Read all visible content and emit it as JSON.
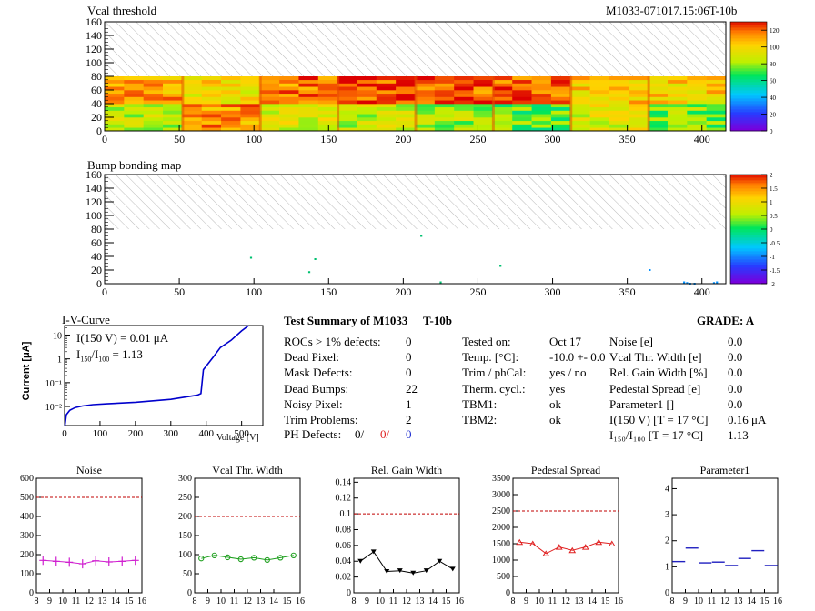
{
  "header": {
    "map1_title": "Vcal threshold",
    "module_id": "M1033-071017.15:06T-10b",
    "map2_title": "Bump bonding map"
  },
  "map_common": {
    "x_ticks": [
      0,
      50,
      100,
      150,
      200,
      250,
      300,
      350,
      400
    ],
    "y_ticks": [
      0,
      20,
      40,
      60,
      80,
      100,
      120,
      140,
      160
    ],
    "xlim": [
      0,
      416
    ],
    "ylim": [
      0,
      160
    ],
    "filled_rows_max": 80
  },
  "vcal_map": {
    "palette_ticks": [
      "0",
      "20",
      "40",
      "60",
      "80",
      "100",
      "120"
    ],
    "zlim": [
      0,
      130
    ],
    "roc_base_levels": [
      82,
      112,
      88,
      84,
      80,
      72,
      90,
      76,
      110,
      96,
      116,
      122,
      120,
      120,
      102,
      100
    ]
  },
  "bump_map": {
    "palette_ticks": [
      "-2",
      "-1.5",
      "-1",
      "-0.5",
      "0",
      "0.5",
      "1",
      "1.5",
      "2"
    ],
    "zlim": [
      -2,
      2
    ],
    "dead_bumps": [
      [
        98,
        38
      ],
      [
        137,
        17
      ],
      [
        141,
        36
      ],
      [
        212,
        70
      ],
      [
        225,
        2
      ],
      [
        265,
        26
      ],
      [
        365,
        20
      ],
      [
        388,
        2
      ],
      [
        390,
        1
      ],
      [
        392,
        0
      ],
      [
        395,
        0
      ],
      [
        408,
        1
      ],
      [
        410,
        2
      ]
    ]
  },
  "iv": {
    "title": "I-V-Curve",
    "ylabel": "Current [μA]",
    "xlabel": "Voltage [V]",
    "ann1": "I(150 V) = 0.01 μA",
    "ann2_pre": "I",
    "ann2_sub1": "150",
    "ann2_mid": "/I",
    "ann2_sub2": "100",
    "ann2_post": " =  1.13",
    "x_ticks": [
      "0",
      "100",
      "200",
      "300",
      "400",
      "500"
    ],
    "y_ticks": [
      "10⁻²",
      "10⁻¹",
      "1",
      "10"
    ],
    "xlim": [
      0,
      560
    ],
    "ylog_range": [
      -2.8,
      1.4
    ],
    "points": [
      [
        1,
        0.0016
      ],
      [
        5,
        0.0045
      ],
      [
        15,
        0.007
      ],
      [
        30,
        0.009
      ],
      [
        50,
        0.0105
      ],
      [
        80,
        0.012
      ],
      [
        120,
        0.013
      ],
      [
        200,
        0.015
      ],
      [
        300,
        0.02
      ],
      [
        375,
        0.03
      ],
      [
        385,
        0.035
      ],
      [
        392,
        0.35
      ],
      [
        400,
        0.5
      ],
      [
        420,
        1.2
      ],
      [
        440,
        3.0
      ],
      [
        470,
        6.0
      ],
      [
        500,
        15.0
      ],
      [
        520,
        30.0
      ]
    ]
  },
  "summary": {
    "title": "Test Summary of M1033",
    "tbin": "T-10b",
    "grade": "GRADE:  A",
    "col1": [
      {
        "label": "ROCs > 1% defects:",
        "value": "0"
      },
      {
        "label": "Dead Pixel:",
        "value": "0"
      },
      {
        "label": "Mask Defects:",
        "value": "0"
      },
      {
        "label": "Dead Bumps:",
        "value": "22"
      },
      {
        "label": "Noisy Pixel:",
        "value": "1"
      },
      {
        "label": "Trim Problems:",
        "value": "2"
      }
    ],
    "ph_label": "PH Defects:",
    "ph_values": [
      "0/",
      "0/",
      "0"
    ],
    "col2": [
      {
        "label": "Tested on:",
        "value": "Oct 17"
      },
      {
        "label": "Temp. [°C]:",
        "value": "-10.0 +- 0.0"
      },
      {
        "label": "Trim / phCal:",
        "value": "yes / no"
      },
      {
        "label": "Therm. cycl.:",
        "value": "yes"
      },
      {
        "label": "TBM1:",
        "value": "ok"
      },
      {
        "label": "TBM2:",
        "value": "ok"
      }
    ],
    "col3": [
      {
        "label": "Noise [e]",
        "value": "0.0"
      },
      {
        "label": "Vcal Thr. Width [e]",
        "value": "0.0"
      },
      {
        "label": "Rel. Gain Width [%]",
        "value": "0.0"
      },
      {
        "label": "Pedestal Spread [e]",
        "value": "0.0"
      },
      {
        "label": "Parameter1 []",
        "value": "0.0"
      },
      {
        "label": "I(150 V) [T = 17 °C]",
        "value": "0.16 μA"
      },
      {
        "label": "I₁₅₀/I₁₀₀  [T = 17 °C]",
        "value": "1.13"
      }
    ]
  },
  "chart_data": [
    {
      "type": "line",
      "title": "Noise",
      "x": [
        8.5,
        9.5,
        10.5,
        11.5,
        12.5,
        13.5,
        14.5,
        15.5
      ],
      "values": [
        170,
        165,
        160,
        152,
        168,
        162,
        165,
        170
      ],
      "ylim": [
        0,
        600
      ],
      "y_ticks": [
        0,
        100,
        200,
        300,
        400,
        500,
        600
      ],
      "x_ticks": [
        8,
        9,
        10,
        11,
        12,
        13,
        14,
        15,
        16
      ],
      "xlim": [
        8,
        16
      ],
      "threshold": 500,
      "color": "#d020d0",
      "marker": "plus"
    },
    {
      "type": "line",
      "title": "Vcal Thr. Width",
      "x": [
        8.5,
        9.5,
        10.5,
        11.5,
        12.5,
        13.5,
        14.5,
        15.5
      ],
      "values": [
        90,
        98,
        93,
        88,
        92,
        86,
        92,
        98
      ],
      "ylim": [
        0,
        300
      ],
      "y_ticks": [
        0,
        50,
        100,
        150,
        200,
        250,
        300
      ],
      "x_ticks": [
        8,
        9,
        10,
        11,
        12,
        13,
        14,
        15,
        16
      ],
      "xlim": [
        8,
        16
      ],
      "threshold": 200,
      "color": "#20a020",
      "marker": "circle"
    },
    {
      "type": "line",
      "title": "Rel. Gain Width",
      "x": [
        8.5,
        9.5,
        10.5,
        11.5,
        12.5,
        13.5,
        14.5,
        15.5
      ],
      "values": [
        0.04,
        0.052,
        0.027,
        0.028,
        0.025,
        0.028,
        0.04,
        0.03
      ],
      "ylim": [
        0,
        0.145
      ],
      "y_ticks": [
        0,
        0.02,
        0.04,
        0.06,
        0.08,
        0.1,
        0.12,
        0.14
      ],
      "x_ticks": [
        8,
        9,
        10,
        11,
        12,
        13,
        14,
        15,
        16
      ],
      "xlim": [
        8,
        16
      ],
      "threshold": 0.1,
      "color": "#000000",
      "marker": "triangle-down"
    },
    {
      "type": "line",
      "title": "Pedestal Spread",
      "x": [
        8.5,
        9.5,
        10.5,
        11.5,
        12.5,
        13.5,
        14.5,
        15.5
      ],
      "values": [
        1550,
        1500,
        1200,
        1400,
        1300,
        1400,
        1550,
        1500
      ],
      "ylim": [
        0,
        3500
      ],
      "y_ticks": [
        0,
        500,
        1000,
        1500,
        2000,
        2500,
        3000,
        3500
      ],
      "x_ticks": [
        8,
        9,
        10,
        11,
        12,
        13,
        14,
        15,
        16
      ],
      "xlim": [
        8,
        16
      ],
      "threshold": 2500,
      "color": "#e02020",
      "marker": "triangle-up"
    },
    {
      "type": "scatter",
      "title": "Parameter1",
      "x": [
        8.5,
        9.5,
        10.5,
        11.5,
        12.5,
        13.5,
        14.5,
        15.5
      ],
      "values": [
        1.2,
        1.72,
        1.15,
        1.18,
        1.05,
        1.32,
        1.62,
        1.05
      ],
      "ylim": [
        0,
        4.4
      ],
      "y_ticks": [
        0,
        1,
        2,
        3,
        4
      ],
      "x_ticks": [
        8,
        9,
        10,
        11,
        12,
        13,
        14,
        15,
        16
      ],
      "xlim": [
        8,
        16
      ],
      "threshold": null,
      "color": "#2020c0",
      "marker": "hbar"
    }
  ]
}
